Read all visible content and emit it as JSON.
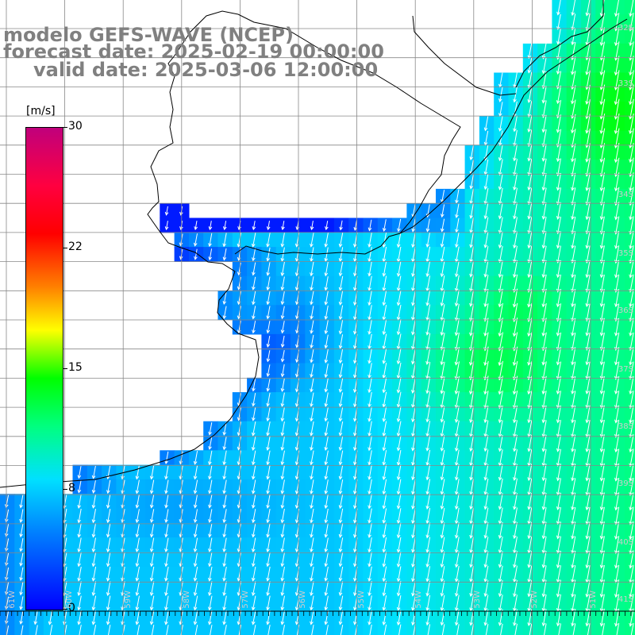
{
  "title": {
    "line1": "modelo GEFS-WAVE (NCEP)",
    "line2": "forecast date: 2025-02-19 00:00:00",
    "line3": "valid date: 2025-03-06 12:00:00"
  },
  "colorbar": {
    "unit": "[m/s]",
    "ticks": [
      "30",
      "22",
      "15",
      "8",
      "0"
    ],
    "colors": [
      "#0000ff",
      "#0080ff",
      "#00e0ff",
      "#00ff80",
      "#00ff00",
      "#ffff00",
      "#ff8000",
      "#ff0000",
      "#c0007c"
    ]
  },
  "lat_labels": [
    "32S",
    "33S",
    "34S",
    "35S",
    "36S",
    "37S",
    "38S",
    "39S",
    "40S",
    "41S"
  ],
  "lon_labels": [
    "61W",
    "60W",
    "59W",
    "58W",
    "57W",
    "56W",
    "55W",
    "54W",
    "53W",
    "52W",
    "51W"
  ],
  "wind_direction": "south-southwest"
}
